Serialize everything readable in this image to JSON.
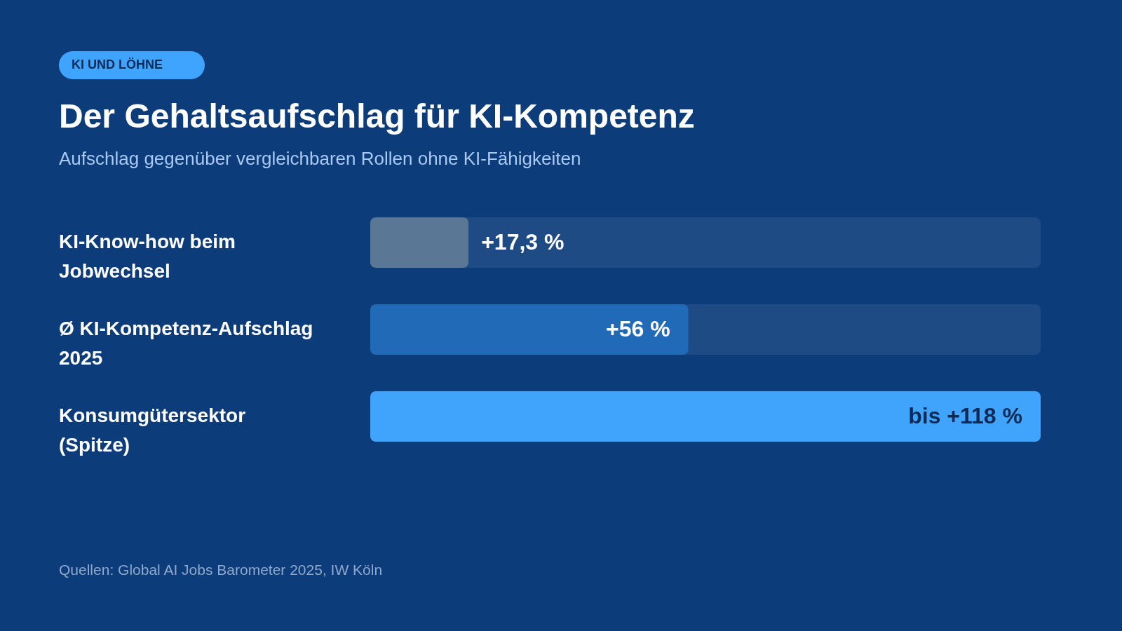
{
  "chart_data": {
    "type": "bar",
    "orientation": "horizontal",
    "title": "Der Gehaltsaufschlag für KI-Kompetenz",
    "subtitle": "Aufschlag gegenüber vergleichbaren Rollen ohne KI-Fähigkeiten",
    "categories": [
      "KI-Know-how beim Jobwechsel",
      "Ø KI-Kompetenz-Aufschlag 2025",
      "Konsumgütersektor (Spitze)"
    ],
    "values": [
      17.3,
      56,
      118
    ],
    "colors": [
      "#5b7796",
      "#216ab8",
      "#40a4fd"
    ],
    "value_labels": [
      "+17,3 %",
      "+56 %",
      "bis +118 %"
    ],
    "xlim": [
      0,
      118
    ],
    "tick_labels": false,
    "annotations": [
      "KI UND LÖHNE",
      "Quellen: Global AI Jobs Barometer 2025, IW Köln"
    ]
  }
}
